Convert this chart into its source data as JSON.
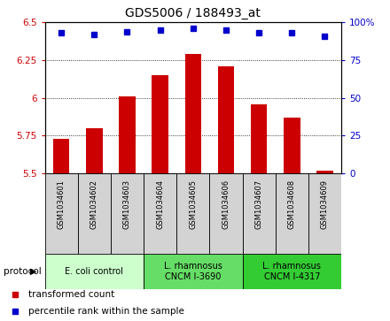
{
  "title": "GDS5006 / 188493_at",
  "samples": [
    "GSM1034601",
    "GSM1034602",
    "GSM1034603",
    "GSM1034604",
    "GSM1034605",
    "GSM1034606",
    "GSM1034607",
    "GSM1034608",
    "GSM1034609"
  ],
  "transformed_count": [
    5.73,
    5.8,
    6.01,
    6.15,
    6.29,
    6.21,
    5.96,
    5.87,
    5.52
  ],
  "percentile_rank": [
    93,
    92,
    94,
    95,
    96,
    95,
    93,
    93,
    91
  ],
  "bar_color": "#cc0000",
  "dot_color": "#0000cc",
  "ylim_left": [
    5.5,
    6.5
  ],
  "ylim_right": [
    0,
    100
  ],
  "yticks_left": [
    5.5,
    5.75,
    6.0,
    6.25,
    6.5
  ],
  "ytick_labels_left": [
    "5.5",
    "5.75",
    "6",
    "6.25",
    "6.5"
  ],
  "yticks_right": [
    0,
    25,
    50,
    75,
    100
  ],
  "ytick_labels_right": [
    "0",
    "25",
    "50",
    "75",
    "100%"
  ],
  "grid_values": [
    5.75,
    6.0,
    6.25
  ],
  "protocols": [
    {
      "label": "E. coli control",
      "start": 0,
      "end": 3,
      "color": "#ccffcc"
    },
    {
      "label": "L. rhamnosus\nCNCM I-3690",
      "start": 3,
      "end": 6,
      "color": "#66dd66"
    },
    {
      "label": "L. rhamnosus\nCNCM I-4317",
      "start": 6,
      "end": 9,
      "color": "#33cc33"
    }
  ],
  "legend_items": [
    {
      "label": "transformed count",
      "color": "#cc0000",
      "marker": "s"
    },
    {
      "label": "percentile rank within the sample",
      "color": "#0000cc",
      "marker": "s"
    }
  ],
  "protocol_label": "protocol",
  "title_fontsize": 10,
  "tick_fontsize": 7.5,
  "sample_fontsize": 6,
  "proto_fontsize": 7,
  "legend_fontsize": 7.5
}
